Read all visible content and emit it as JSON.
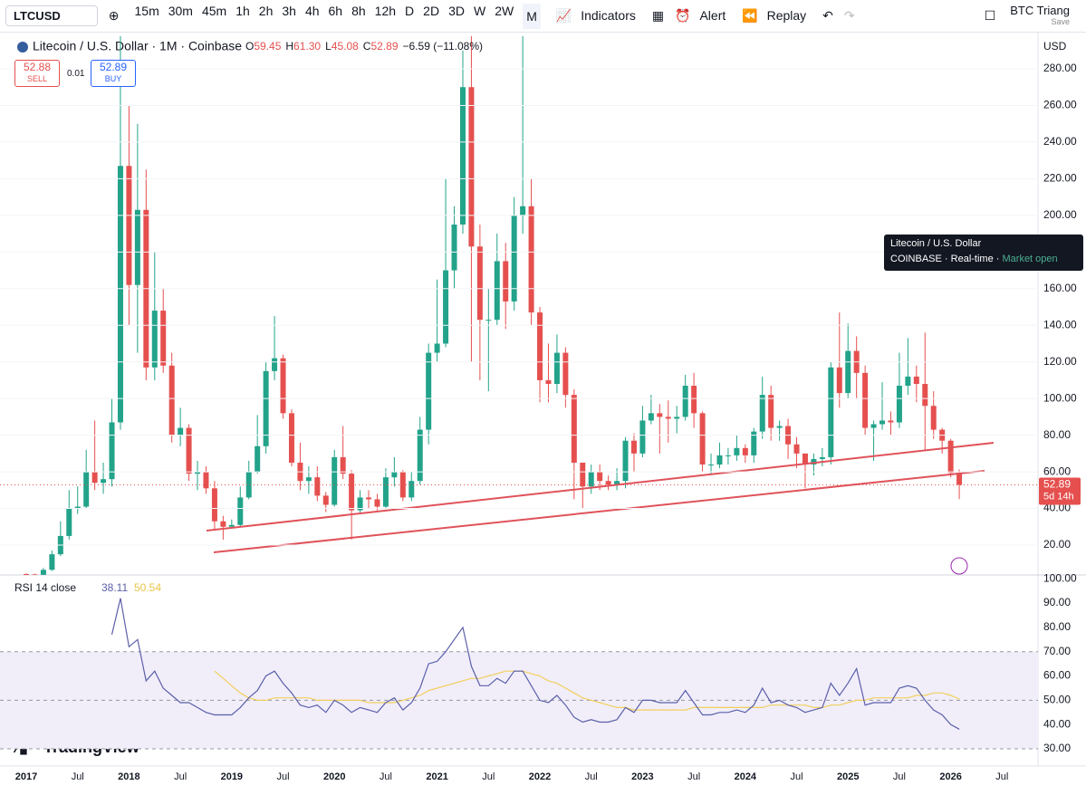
{
  "toolbar": {
    "symbol": "LTCUSD",
    "intervals": [
      "15m",
      "30m",
      "45m",
      "1h",
      "2h",
      "3h",
      "4h",
      "6h",
      "8h",
      "12h",
      "D",
      "2D",
      "3D",
      "W",
      "2W",
      "M"
    ],
    "indicators": "Indicators",
    "alert": "Alert",
    "replay": "Replay",
    "layout_name": "BTC Triang",
    "save": "Save"
  },
  "trade": {
    "sell_price": "52.88",
    "sell": "SELL",
    "spread": "0.01",
    "buy_price": "52.89",
    "buy": "BUY"
  },
  "tooltip": {
    "title": "Litecoin / U.S. Dollar",
    "exchange": "COINBASE",
    "mode": "Real-time",
    "status": "Market open"
  },
  "currency": "USD",
  "logo": "TradingView",
  "chart_data": {
    "type": "candlestick",
    "title": "Litecoin / U.S. Dollar · 1M · Coinbase",
    "ohlc_legend": [
      "O",
      "59.45",
      "H",
      "61.30",
      "L",
      "45.08",
      "C",
      "52.89",
      "−6.59 (−11.08%)"
    ],
    "countdown": "5d 14h",
    "up_color": "#22a38a",
    "down_color": "#e5504f",
    "categories": [
      "2017",
      null,
      null,
      null,
      null,
      null,
      "Jul",
      null,
      null,
      null,
      null,
      null,
      "2018",
      null,
      null,
      null,
      null,
      null,
      "Jul",
      null,
      null,
      null,
      null,
      null,
      "2019",
      null,
      null,
      null,
      null,
      null,
      "Jul",
      null,
      null,
      null,
      null,
      null,
      "2020",
      null,
      null,
      null,
      null,
      null,
      "Jul",
      null,
      null,
      null,
      null,
      null,
      "2021",
      null,
      null,
      null,
      null,
      null,
      "Jul",
      null,
      null,
      null,
      null,
      null,
      "2022",
      null,
      null,
      null,
      null,
      null,
      "Jul",
      null,
      null,
      null,
      null,
      null,
      "2023",
      null,
      null,
      null,
      null,
      null,
      "Jul",
      null,
      null,
      null,
      null,
      null,
      "2024",
      null,
      null,
      null,
      null,
      null,
      "Jul",
      null,
      null,
      null,
      null,
      null,
      "2025",
      null,
      null,
      null,
      null,
      null,
      "Jul",
      null,
      null,
      null,
      null,
      null,
      "2026",
      null,
      null,
      null,
      null,
      null,
      "Jul"
    ],
    "open": [
      4.2,
      4.0,
      3.8,
      6.5,
      15,
      25,
      40,
      41,
      60,
      54,
      56,
      87,
      227,
      162,
      203,
      117,
      148,
      118,
      80,
      84,
      59,
      60,
      51,
      33,
      30,
      31,
      46,
      60,
      74,
      115,
      122,
      92,
      65,
      55,
      57,
      47,
      42,
      68,
      59,
      39,
      46,
      45,
      41,
      57,
      60,
      46,
      55,
      83,
      125,
      130,
      170,
      195,
      270,
      183,
      143,
      143,
      175,
      153,
      200,
      205,
      147,
      110,
      108,
      125,
      102,
      65,
      52,
      60,
      55,
      53,
      55,
      77,
      70,
      88,
      92,
      90,
      89,
      90,
      107,
      92,
      64,
      64,
      69,
      69,
      73,
      69,
      82,
      102,
      84,
      85,
      75,
      70,
      64,
      67,
      68,
      117,
      103,
      126,
      114,
      84,
      86,
      88,
      87,
      107,
      112,
      108,
      96,
      83,
      77,
      59.45,
      null,
      null,
      null,
      null,
      null
    ],
    "high": [
      4.6,
      4.4,
      7.5,
      17,
      33,
      50,
      52,
      72,
      88,
      65,
      100,
      420,
      260,
      250,
      225,
      180,
      160,
      125,
      95,
      86,
      66,
      63,
      55,
      36,
      34,
      52,
      66,
      91,
      120,
      145,
      124,
      94,
      76,
      63,
      63,
      49,
      72,
      85,
      61,
      50,
      50,
      48,
      62,
      68,
      61,
      60,
      90,
      130,
      165,
      220,
      205,
      290,
      413,
      195,
      160,
      190,
      185,
      210,
      300,
      220,
      150,
      130,
      135,
      128,
      105,
      65,
      64,
      64,
      58,
      62,
      79,
      81,
      96,
      102,
      97,
      99,
      96,
      113,
      114,
      93,
      70,
      76,
      73,
      80,
      75,
      84,
      112,
      107,
      88,
      89,
      79,
      70,
      70,
      73,
      120,
      147,
      141,
      134,
      118,
      88,
      109,
      93,
      125,
      133,
      118,
      136,
      104,
      84,
      78,
      61.3,
      null,
      null,
      null,
      null,
      null
    ],
    "low": [
      3.6,
      3.6,
      3.7,
      5.9,
      14,
      23,
      37,
      40,
      50,
      48,
      52,
      83,
      140,
      125,
      110,
      110,
      114,
      76,
      74,
      55,
      50,
      48,
      28,
      23,
      29,
      30,
      45,
      59,
      70,
      110,
      89,
      63,
      50,
      48,
      44,
      38,
      41,
      56,
      23,
      37,
      40,
      39,
      40,
      52,
      44,
      44,
      53,
      75,
      120,
      128,
      160,
      190,
      120,
      110,
      104,
      140,
      138,
      148,
      190,
      140,
      98,
      98,
      103,
      95,
      45,
      40,
      48,
      50,
      50,
      50,
      51,
      60,
      68,
      86,
      70,
      76,
      81,
      88,
      84,
      60,
      59,
      62,
      64,
      66,
      65,
      65,
      78,
      77,
      77,
      67,
      62,
      51,
      58,
      63,
      64,
      95,
      100,
      100,
      80,
      66,
      83,
      80,
      84,
      102,
      98,
      72,
      78,
      70,
      57,
      45.08,
      null,
      null,
      null,
      null,
      null
    ],
    "close": [
      4.0,
      3.8,
      6.5,
      15,
      25,
      40,
      41,
      60,
      54,
      56,
      87,
      227,
      162,
      203,
      117,
      148,
      118,
      80,
      84,
      59,
      60,
      51,
      33,
      30,
      31,
      46,
      60,
      74,
      115,
      122,
      92,
      65,
      55,
      57,
      47,
      42,
      68,
      59,
      39,
      46,
      45,
      41,
      57,
      60,
      46,
      55,
      83,
      125,
      130,
      170,
      195,
      270,
      183,
      143,
      143,
      175,
      153,
      200,
      205,
      147,
      110,
      108,
      125,
      102,
      65,
      52,
      60,
      55,
      53,
      55,
      77,
      70,
      88,
      92,
      90,
      89,
      90,
      107,
      92,
      64,
      64,
      69,
      69,
      73,
      69,
      82,
      102,
      84,
      85,
      75,
      70,
      64,
      67,
      68,
      117,
      103,
      126,
      114,
      84,
      86,
      88,
      87,
      107,
      112,
      108,
      96,
      83,
      77,
      59.45,
      52.89,
      null,
      null,
      null,
      null,
      null
    ],
    "ylim": [
      3.7,
      297.8
    ],
    "yticks": [
      {
        "value": 20,
        "label": "20.00"
      },
      {
        "value": 40,
        "label": "40.00"
      },
      {
        "value": 60,
        "label": "60.00"
      },
      {
        "value": 80,
        "label": "80.00"
      },
      {
        "value": 100,
        "label": "100.00"
      },
      {
        "value": 120,
        "label": "120.00"
      },
      {
        "value": 140,
        "label": "140.00"
      },
      {
        "value": 160,
        "label": "160.00"
      },
      {
        "value": 180,
        "label": "180.00"
      },
      {
        "value": 200,
        "label": "200.00"
      },
      {
        "value": 220,
        "label": "220.00"
      },
      {
        "value": 240,
        "label": "240.00"
      },
      {
        "value": 260,
        "label": "260.00"
      },
      {
        "value": 280,
        "label": "280.00"
      }
    ],
    "rsi": {
      "label": "RSI 14 close",
      "color": "#5b5fa8",
      "ma_color": "#f2cf5b",
      "values": [
        null,
        null,
        null,
        null,
        null,
        null,
        null,
        null,
        null,
        null,
        77,
        92,
        72,
        75,
        58,
        62,
        55,
        52,
        49,
        49,
        47,
        45,
        44,
        44,
        44,
        47,
        51,
        54,
        60,
        62,
        57,
        53,
        48,
        47,
        48,
        45,
        50,
        48,
        45,
        47,
        46,
        45,
        49,
        51,
        46,
        49,
        55,
        65,
        66,
        70,
        75,
        80,
        64,
        56,
        56,
        59,
        57,
        62,
        62,
        56,
        50,
        49,
        52,
        48,
        43,
        41,
        42,
        41,
        41,
        42,
        47,
        45,
        50,
        50,
        49,
        49,
        49,
        54,
        49,
        44,
        44,
        45,
        45,
        46,
        45,
        48,
        55,
        49,
        50,
        48,
        47,
        45,
        46,
        47,
        57,
        52,
        57,
        63,
        48,
        49,
        49,
        49,
        55,
        56,
        55,
        50,
        46,
        44,
        40,
        38.11,
        null,
        null,
        null,
        null,
        null
      ],
      "ma": [
        null,
        null,
        null,
        null,
        null,
        null,
        null,
        null,
        null,
        null,
        null,
        null,
        null,
        null,
        null,
        null,
        null,
        null,
        null,
        null,
        null,
        null,
        62,
        59,
        56,
        53,
        51,
        50,
        50,
        51,
        51,
        51,
        51,
        51,
        50,
        50,
        50,
        50,
        50,
        50,
        49,
        49,
        49,
        49,
        50,
        51,
        52,
        54,
        55,
        56,
        57,
        58,
        59,
        59,
        60,
        61,
        62,
        62,
        62,
        61,
        60,
        58,
        57,
        55,
        53,
        51,
        50,
        49,
        48,
        47,
        47,
        46,
        46,
        46,
        46,
        46,
        46,
        46,
        47,
        47,
        47,
        47,
        47,
        47,
        47,
        47,
        47,
        48,
        48,
        48,
        48,
        48,
        47,
        47,
        48,
        48,
        49,
        50,
        50,
        51,
        51,
        51,
        51,
        51,
        52,
        52,
        53,
        53,
        52,
        50.54,
        null,
        null,
        null,
        null,
        null
      ],
      "levels": [
        70,
        50,
        30
      ],
      "ylim": [
        23.3,
        101.2
      ],
      "yticks": [
        {
          "value": 30,
          "label": "30.00"
        },
        {
          "value": 40,
          "label": "40.00"
        },
        {
          "value": 50,
          "label": "50.00"
        },
        {
          "value": 60,
          "label": "60.00"
        },
        {
          "value": 70,
          "label": "70.00"
        },
        {
          "value": 80,
          "label": "80.00"
        },
        {
          "value": 90,
          "label": "90.00"
        },
        {
          "value": 100,
          "label": "100.00"
        }
      ]
    }
  }
}
